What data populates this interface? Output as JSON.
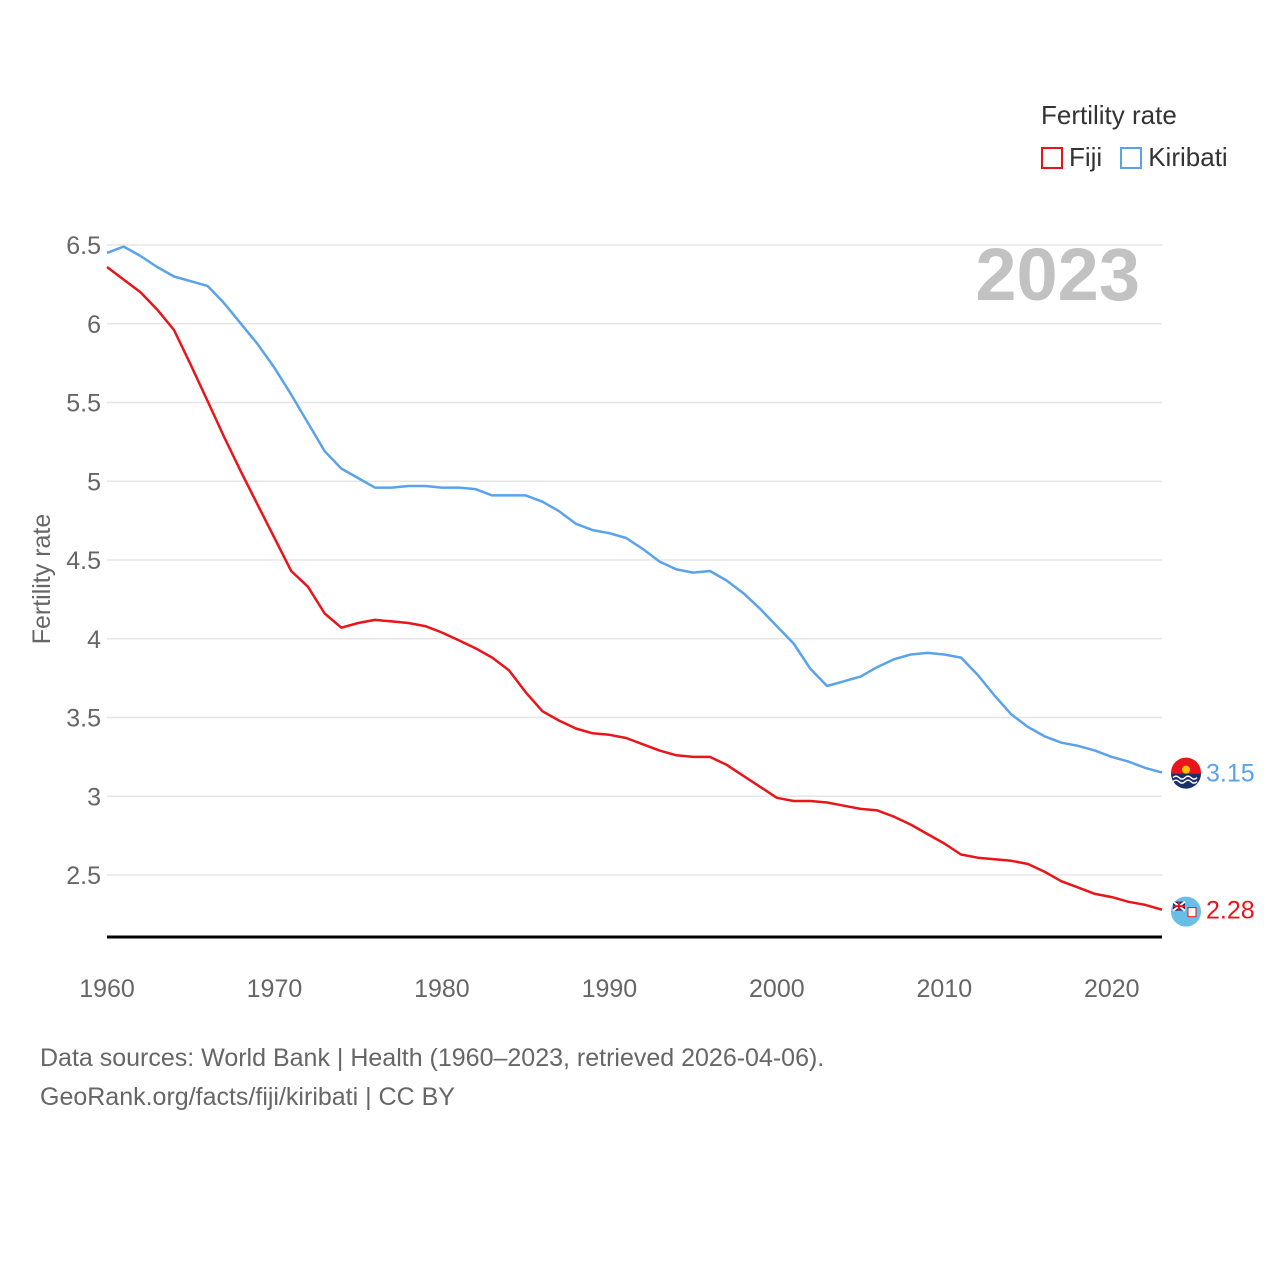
{
  "legend": {
    "title": "Fertility rate",
    "items": [
      {
        "label": "Fiji",
        "color": "#e8161b"
      },
      {
        "label": "Kiribati",
        "color": "#5aa3ea"
      }
    ]
  },
  "footer": {
    "line1": "Data sources: World Bank | Health (1960–2023, retrieved 2026-04-06).",
    "line2": "GeoRank.org/facts/fiji/kiribati | CC BY"
  },
  "chart_data": {
    "type": "line",
    "title": "2023",
    "xlabel": "",
    "ylabel": "Fertility rate",
    "xlim": [
      1960,
      2023
    ],
    "ylim": [
      2.1,
      6.55
    ],
    "xticks": [
      1960,
      1970,
      1980,
      1990,
      2000,
      2010,
      2020
    ],
    "yticks": [
      2.5,
      3,
      3.5,
      4,
      4.5,
      5,
      5.5,
      6,
      6.5
    ],
    "ytick_labels": [
      "2.5",
      "3",
      "3.5",
      "4",
      "4.5",
      "5",
      "5.5",
      "6",
      "6.5"
    ],
    "grid": true,
    "x": [
      1960,
      1961,
      1962,
      1963,
      1964,
      1965,
      1966,
      1967,
      1968,
      1969,
      1970,
      1971,
      1972,
      1973,
      1974,
      1975,
      1976,
      1977,
      1978,
      1979,
      1980,
      1981,
      1982,
      1983,
      1984,
      1985,
      1986,
      1987,
      1988,
      1989,
      1990,
      1991,
      1992,
      1993,
      1994,
      1995,
      1996,
      1997,
      1998,
      1999,
      2000,
      2001,
      2002,
      2003,
      2004,
      2005,
      2006,
      2007,
      2008,
      2009,
      2010,
      2011,
      2012,
      2013,
      2014,
      2015,
      2016,
      2017,
      2018,
      2019,
      2020,
      2021,
      2022,
      2023
    ],
    "series": [
      {
        "name": "Fiji",
        "color": "#e8161b",
        "end_label": "2.28",
        "values": [
          6.36,
          6.28,
          6.2,
          6.09,
          5.96,
          5.74,
          5.51,
          5.28,
          5.06,
          4.85,
          4.64,
          4.43,
          4.33,
          4.16,
          4.07,
          4.1,
          4.12,
          4.11,
          4.1,
          4.08,
          4.04,
          3.99,
          3.94,
          3.88,
          3.8,
          3.66,
          3.54,
          3.48,
          3.43,
          3.4,
          3.39,
          3.37,
          3.33,
          3.29,
          3.26,
          3.25,
          3.25,
          3.2,
          3.13,
          3.06,
          2.99,
          2.97,
          2.97,
          2.96,
          2.94,
          2.92,
          2.91,
          2.87,
          2.82,
          2.76,
          2.7,
          2.63,
          2.61,
          2.6,
          2.59,
          2.57,
          2.52,
          2.46,
          2.42,
          2.38,
          2.36,
          2.33,
          2.31,
          2.28
        ]
      },
      {
        "name": "Kiribati",
        "color": "#5aa3ea",
        "end_label": "3.15",
        "values": [
          6.45,
          6.49,
          6.43,
          6.36,
          6.3,
          6.27,
          6.24,
          6.13,
          6.0,
          5.87,
          5.72,
          5.55,
          5.37,
          5.19,
          5.08,
          5.02,
          4.96,
          4.96,
          4.97,
          4.97,
          4.96,
          4.96,
          4.95,
          4.91,
          4.91,
          4.91,
          4.87,
          4.81,
          4.73,
          4.69,
          4.67,
          4.64,
          4.57,
          4.49,
          4.44,
          4.42,
          4.43,
          4.37,
          4.29,
          4.19,
          4.08,
          3.97,
          3.81,
          3.7,
          3.73,
          3.76,
          3.82,
          3.87,
          3.9,
          3.91,
          3.9,
          3.88,
          3.77,
          3.64,
          3.52,
          3.44,
          3.38,
          3.34,
          3.32,
          3.29,
          3.25,
          3.22,
          3.18,
          3.15
        ]
      }
    ]
  }
}
